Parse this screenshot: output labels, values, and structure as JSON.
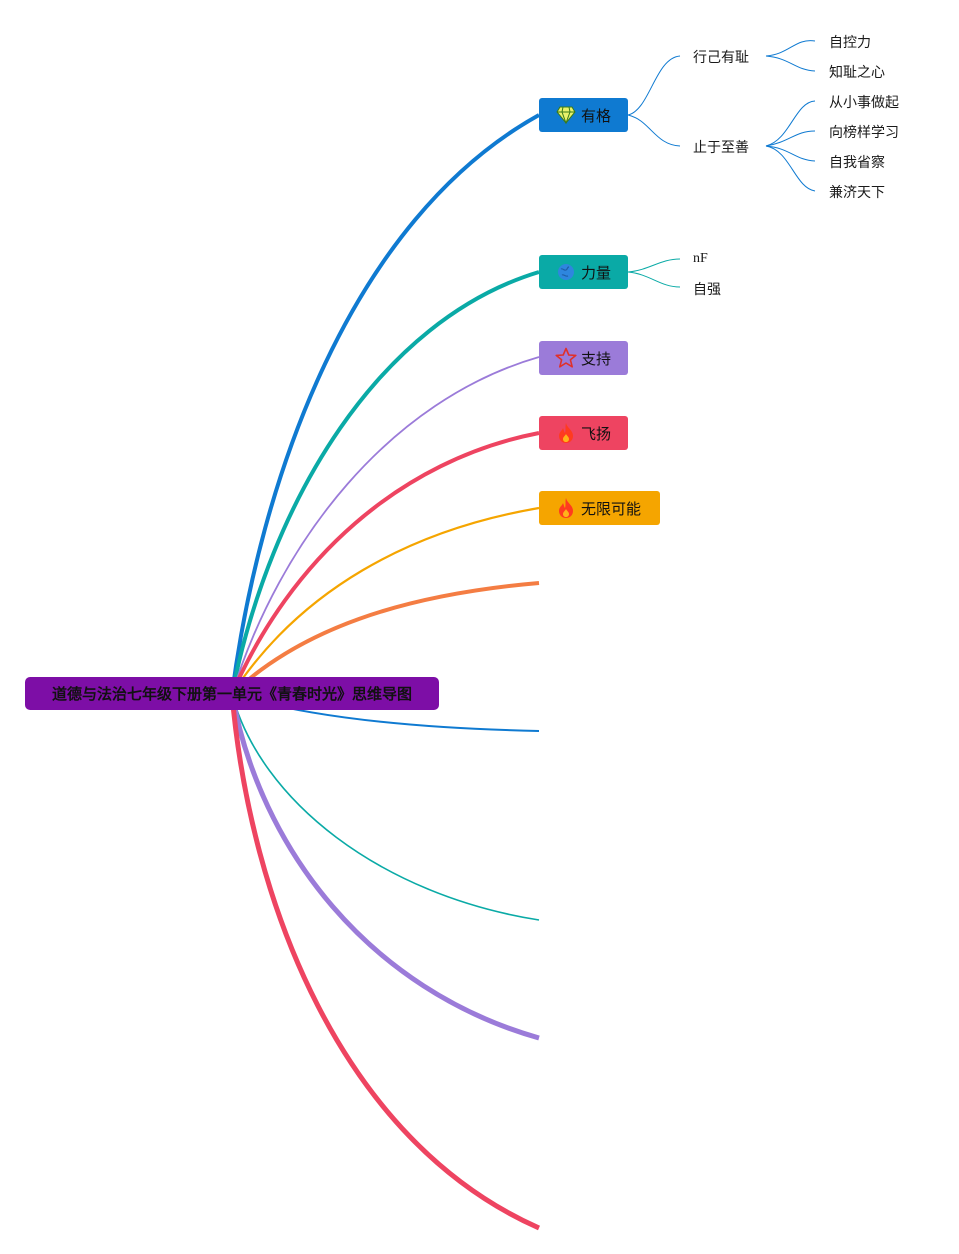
{
  "root": {
    "label": "道德与法治七年级下册第一单元《青春时光》思维导图"
  },
  "branches": [
    {
      "id": "yougei",
      "label": "有格",
      "icon": "diamond-icon",
      "color": "#0f7ad1"
    },
    {
      "id": "liliang",
      "label": "力量",
      "icon": "globe-icon",
      "color": "#0aaaa6"
    },
    {
      "id": "zhichi",
      "label": "支持",
      "icon": "star-icon",
      "color": "#9b7bd9"
    },
    {
      "id": "feiyang",
      "label": "飞扬",
      "icon": "fire-icon",
      "color": "#ee4461"
    },
    {
      "id": "wuxian",
      "label": "无限可能",
      "icon": "fire-icon",
      "color": "#f5a500"
    }
  ],
  "yougei_children": [
    {
      "label": "行己有耻",
      "children": [
        "自控力",
        "知耻之心"
      ]
    },
    {
      "label": "止于至善",
      "children": [
        "从小事做起",
        "向榜样学习",
        "自我省察",
        "兼济天下"
      ]
    }
  ],
  "liliang_children": [
    "nF",
    "自强"
  ],
  "empty_branch_colors": [
    "#f47d43",
    "#0f7ad1",
    "#0aaaa6",
    "#9b7bd9",
    "#ee4461"
  ]
}
